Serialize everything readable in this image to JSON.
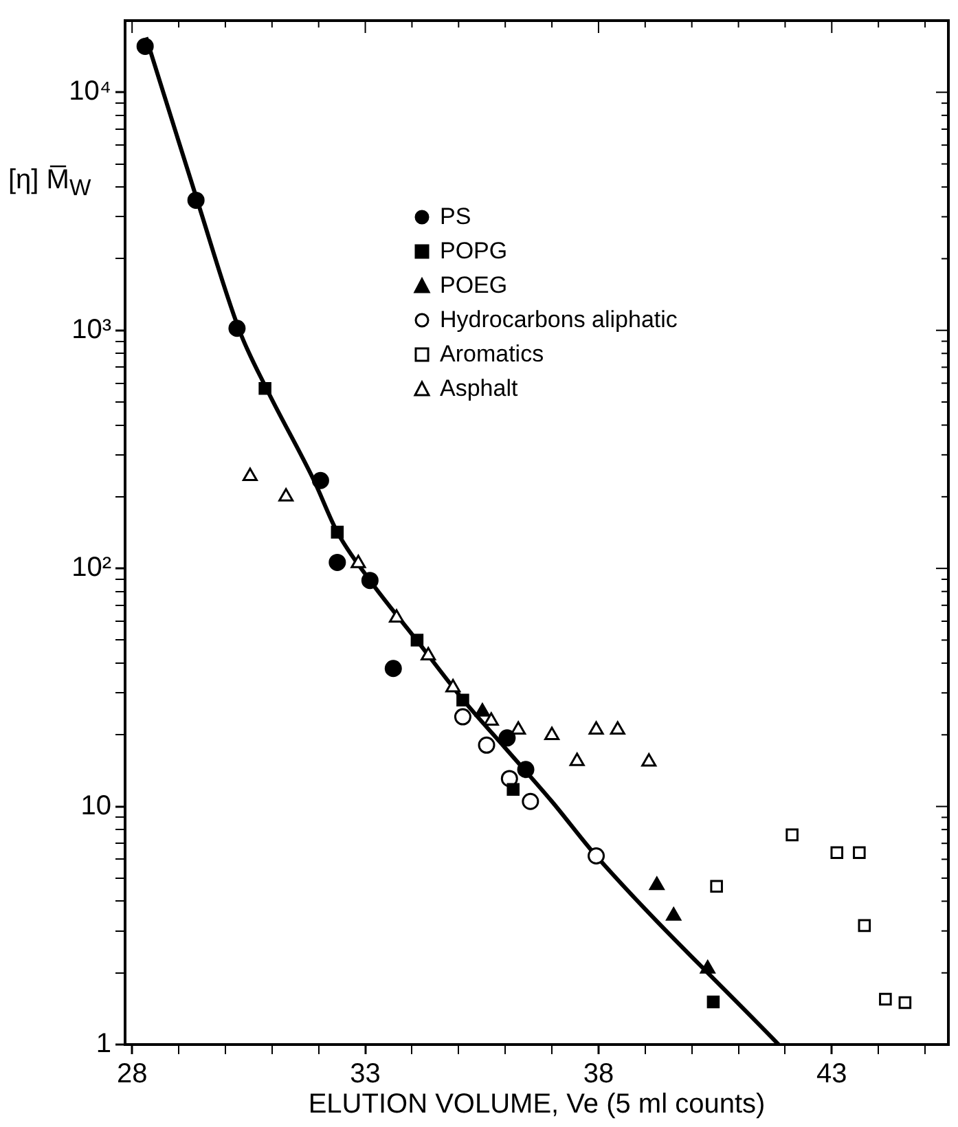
{
  "chart_data": {
    "type": "scatter",
    "xlabel": "ELUTION VOLUME, Ve (5 ml counts)",
    "ylabel": "[η] M̅$_{W}$",
    "xlim": [
      27.85,
      45.5
    ],
    "ylim": [
      1,
      20000
    ],
    "log": "y",
    "grid": false,
    "legend": "top",
    "xticks": [
      28,
      {
        "value": 29,
        "label": null
      },
      {
        "value": 30,
        "label": null
      },
      {
        "value": 31,
        "label": null
      },
      {
        "value": 32,
        "label": null
      },
      33,
      {
        "value": 34,
        "label": null
      },
      {
        "value": 35,
        "label": null
      },
      {
        "value": 36,
        "label": null
      },
      {
        "value": 37,
        "label": null
      },
      38,
      {
        "value": 39,
        "label": null
      },
      {
        "value": 40,
        "label": null
      },
      {
        "value": 41,
        "label": null
      },
      {
        "value": 42,
        "label": null
      },
      43,
      {
        "value": 44,
        "label": null
      },
      {
        "value": 45,
        "label": null
      }
    ],
    "yticks": [
      1,
      {
        "value": 2,
        "label": null
      },
      {
        "value": 3,
        "label": null
      },
      {
        "value": 4,
        "label": null
      },
      {
        "value": 5,
        "label": null
      },
      {
        "value": 6,
        "label": null
      },
      {
        "value": 7,
        "label": null
      },
      {
        "value": 8,
        "label": null
      },
      {
        "value": 9,
        "label": null
      },
      10,
      {
        "value": 20,
        "label": null
      },
      {
        "value": 30,
        "label": null
      },
      {
        "value": 40,
        "label": null
      },
      {
        "value": 50,
        "label": null
      },
      {
        "value": 60,
        "label": null
      },
      {
        "value": 70,
        "label": null
      },
      {
        "value": 80,
        "label": null
      },
      {
        "value": 90,
        "label": null
      },
      {
        "value": 100,
        "label": "10²"
      },
      {
        "value": 200,
        "label": null
      },
      {
        "value": 300,
        "label": null
      },
      {
        "value": 400,
        "label": null
      },
      {
        "value": 500,
        "label": null
      },
      {
        "value": 600,
        "label": null
      },
      {
        "value": 700,
        "label": null
      },
      {
        "value": 800,
        "label": null
      },
      {
        "value": 900,
        "label": null
      },
      {
        "value": 1000,
        "label": "10³"
      },
      {
        "value": 2000,
        "label": null
      },
      {
        "value": 3000,
        "label": null
      },
      {
        "value": 4000,
        "label": null
      },
      {
        "value": 5000,
        "label": null
      },
      {
        "value": 6000,
        "label": null
      },
      {
        "value": 7000,
        "label": null
      },
      {
        "value": 8000,
        "label": null
      },
      {
        "value": 9000,
        "label": null
      },
      {
        "value": 10000,
        "label": "10⁴"
      }
    ],
    "series": [
      {
        "type": "line",
        "color": "#000000",
        "marker": "none",
        "x": [
          28.3,
          29.4,
          30.3,
          30.9,
          31.9,
          32.4,
          33.1,
          34.1,
          35.1,
          36.0,
          37.0,
          37.95,
          41.86
        ],
        "values": [
          17000,
          3500,
          1000,
          560,
          234,
          142,
          89,
          50,
          28,
          17.6,
          10.5,
          6.2,
          1.0
        ]
      },
      {
        "name": "PS",
        "color": "#000000",
        "marker": "circle",
        "x": [
          28.28,
          29.37,
          30.25,
          32.04,
          32.4,
          33.1,
          33.6,
          36.04,
          36.44
        ],
        "values": [
          15600,
          3520,
          1020,
          234,
          106,
          89,
          38,
          19.4,
          14.3
        ]
      },
      {
        "name": "POPG",
        "color": "#000000",
        "marker": "square",
        "x": [
          30.85,
          32.4,
          34.11,
          35.09,
          36.17,
          40.46
        ],
        "values": [
          570,
          142,
          50,
          28,
          11.8,
          1.51
        ]
      },
      {
        "name": "POEG",
        "color": "#000000",
        "marker": "triangle",
        "x": [
          35.51,
          39.25,
          39.61,
          40.34
        ],
        "values": [
          25,
          4.67,
          3.47,
          2.08
        ]
      },
      {
        "name": "Hydrocarbons aliphatic",
        "color": "#ffffff",
        "marker": "circle",
        "x": [
          35.09,
          35.6,
          36.09,
          36.54,
          37.95
        ],
        "values": [
          23.8,
          18.1,
          13.1,
          10.5,
          6.2
        ]
      },
      {
        "name": "Aromatics",
        "color": "#ffffff",
        "marker": "square",
        "x": [
          40.53,
          42.15,
          43.11,
          43.59,
          43.7,
          44.15,
          44.57
        ],
        "values": [
          4.62,
          7.6,
          6.4,
          6.4,
          3.16,
          1.55,
          1.5
        ]
      },
      {
        "name": "Asphalt",
        "color": "#ffffff",
        "marker": "triangle",
        "x": [
          30.53,
          31.3,
          32.85,
          33.67,
          34.35,
          34.88,
          35.7,
          36.28,
          37.0,
          37.54,
          37.95,
          38.41,
          39.08
        ],
        "values": [
          244,
          200,
          105,
          62,
          43,
          31.6,
          22.9,
          21,
          19.9,
          15.5,
          21,
          21,
          15.4
        ]
      }
    ]
  }
}
